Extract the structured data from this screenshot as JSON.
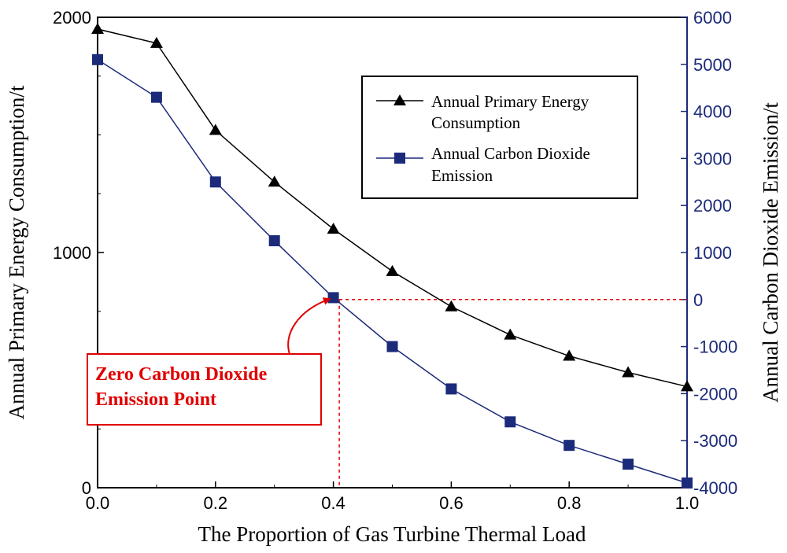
{
  "chart_data": {
    "type": "line",
    "title": "",
    "xlabel": "The Proportion of Gas Turbine Thermal Load",
    "ylabel": "Annual Primary Energy Consumption/t",
    "y2label": "Annual Carbon Dioxide Emission/t",
    "xlim": [
      0,
      1
    ],
    "ylim": [
      0,
      2000
    ],
    "y2lim": [
      -4000,
      6000
    ],
    "x": [
      0.0,
      0.1,
      0.2,
      0.3,
      0.4,
      0.5,
      0.6,
      0.7,
      0.8,
      0.9,
      1.0
    ],
    "x_ticks": [
      "0.0",
      "0.2",
      "0.4",
      "0.6",
      "0.8",
      "1.0"
    ],
    "y_ticks": [
      "0",
      "1000",
      "2000"
    ],
    "y2_ticks": [
      "-4000",
      "-3000",
      "-2000",
      "-1000",
      "0",
      "1000",
      "2000",
      "3000",
      "4000",
      "5000",
      "6000"
    ],
    "grid": false,
    "legend_position": "top-right",
    "series": [
      {
        "name_lines": [
          "Annual Primary Energy",
          "Consumption"
        ],
        "axis": "left",
        "marker": "triangle",
        "color": "#000000",
        "values": [
          1950,
          1890,
          1520,
          1300,
          1100,
          920,
          770,
          650,
          560,
          490,
          430
        ]
      },
      {
        "name_lines": [
          "Annual Carbon Dioxide",
          "Emission"
        ],
        "axis": "right",
        "marker": "square",
        "color": "#1c2a7a",
        "values": [
          5100,
          4300,
          2500,
          1250,
          40,
          -1000,
          -1900,
          -2600,
          -3100,
          -3500,
          -3900
        ]
      }
    ],
    "annotation": {
      "lines": [
        "Zero Carbon Dioxide",
        "Emission Point"
      ],
      "x": 0.41,
      "y2": 0,
      "color": "#e00000"
    }
  }
}
